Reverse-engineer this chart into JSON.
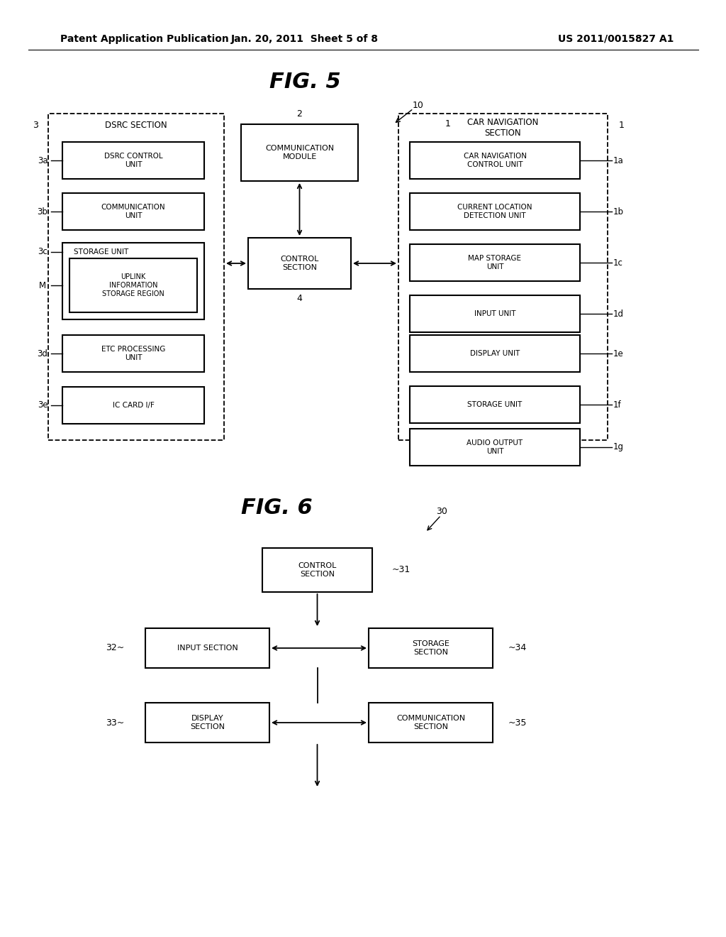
{
  "background_color": "#ffffff",
  "header_left": "Patent Application Publication",
  "header_center": "Jan. 20, 2011  Sheet 5 of 8",
  "header_right": "US 2011/0015827 A1",
  "fig5_title": "FIG. 5",
  "fig6_title": "FIG. 6",
  "dsrc_section_title": "DSRC SECTION",
  "comm_module_title": "COMMUNICATION\nMODULE",
  "car_nav_section_title": "CAR NAVIGATION\nSECTION",
  "dsrc_control_unit": "DSRC CONTROL\nUNIT",
  "comm_unit": "COMMUNICATION\nUNIT",
  "storage_unit_dsrc": "STORAGE UNIT",
  "uplink_region": "UPLINK\nINFORMATION\nSTORAGE REGION",
  "etc_processing": "ETC PROCESSING\nUNIT",
  "ic_card": "IC CARD I/F",
  "control_section5": "CONTROL\nSECTION",
  "car_nav_control": "CAR NAVIGATION\nCONTROL UNIT",
  "current_location": "CURRENT LOCATION\nDETECTION UNIT",
  "map_storage": "MAP STORAGE\nUNIT",
  "input_unit": "INPUT UNIT",
  "display_unit": "DISPLAY UNIT",
  "storage_unit_nav": "STORAGE UNIT",
  "audio_output": "AUDIO OUTPUT\nUNIT",
  "fig6_control": "CONTROL\nSECTION",
  "fig6_input": "INPUT SECTION",
  "fig6_storage": "STORAGE\nSECTION",
  "fig6_display": "DISPLAY\nSECTION",
  "fig6_comm": "COMMUNICATION\nSECTION",
  "label_10": "10",
  "label_1": "1",
  "label_2": "2",
  "label_3": "3",
  "label_4": "4",
  "label_M": "M",
  "label_3a": "3a",
  "label_3b": "3b",
  "label_3c": "3c",
  "label_3d": "3d",
  "label_3e": "3e",
  "label_1a": "1a",
  "label_1b": "1b",
  "label_1c": "1c",
  "label_1d": "1d",
  "label_1e": "1e",
  "label_1f": "1f",
  "label_1g": "1g",
  "label_30": "30",
  "label_31": "31",
  "label_32": "32",
  "label_33": "33",
  "label_34": "34",
  "label_35": "35"
}
